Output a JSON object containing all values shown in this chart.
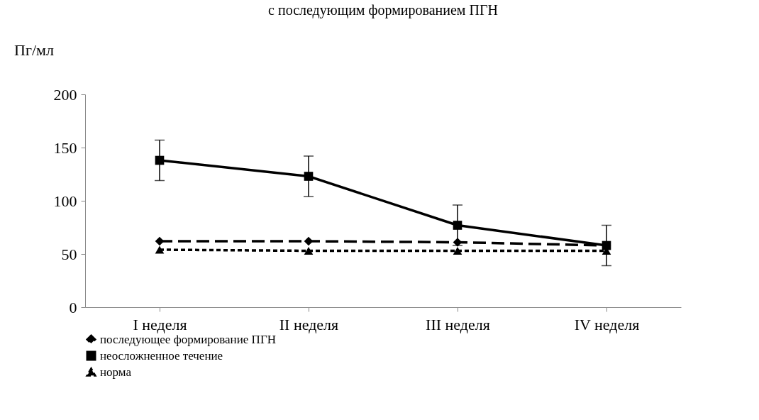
{
  "chart_data": {
    "type": "line",
    "title": "с последующим формированием ПГН",
    "ylabel": "Пг/мл",
    "categories": [
      "I неделя",
      "II неделя",
      "III неделя",
      "IV неделя"
    ],
    "series": [
      {
        "name": "последующее формирование ПГН",
        "color": "#000000",
        "values": [
          62,
          62,
          61,
          58
        ],
        "marker": "diamond",
        "line_style": "dashed"
      },
      {
        "name": "неосложненное течение",
        "color": "#000000",
        "values": [
          138,
          123,
          77,
          58
        ],
        "marker": "square",
        "line_style": "solid",
        "errors": [
          19,
          19,
          19,
          19
        ]
      },
      {
        "name": "норма",
        "color": "#000000",
        "values": [
          54,
          53,
          53,
          53
        ],
        "marker": "triangle",
        "line_style": "dotted"
      }
    ],
    "ylim": [
      0,
      200
    ],
    "yticks": [
      0,
      50,
      100,
      150,
      200
    ],
    "grid": false,
    "legend": "bottom"
  }
}
